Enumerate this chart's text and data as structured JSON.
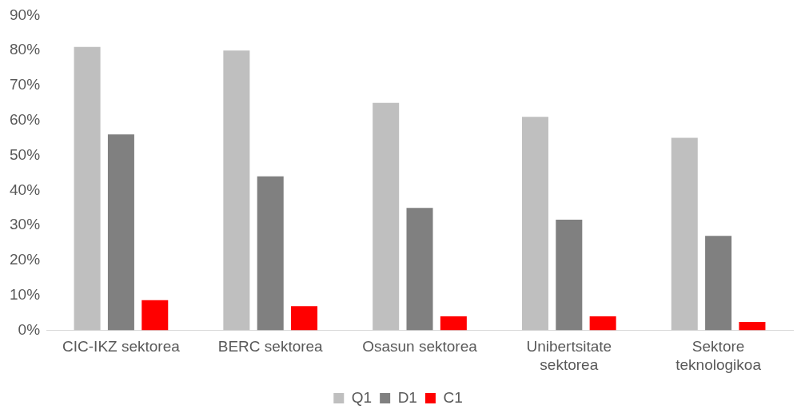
{
  "chart_data": {
    "type": "bar",
    "categories": [
      "CIC-IKZ sektorea",
      "BERC sektorea",
      "Osasun sektorea",
      "Unibertsitate sektorea",
      "Sektore teknologikoa"
    ],
    "series": [
      {
        "name": "Q1",
        "color": "#bfbfbf",
        "values": [
          81,
          80,
          65,
          61,
          55
        ]
      },
      {
        "name": "D1",
        "color": "#808080",
        "values": [
          56,
          44,
          35,
          31.6,
          27
        ]
      },
      {
        "name": "C1",
        "color": "#ff0000",
        "values": [
          8.6,
          6.9,
          4,
          4,
          2.4
        ]
      }
    ],
    "ylim": [
      0,
      90
    ],
    "yticks": [
      {
        "value": 0,
        "label": "0%"
      },
      {
        "value": 10,
        "label": "10%"
      },
      {
        "value": 20,
        "label": "20%"
      },
      {
        "value": 30,
        "label": "30%"
      },
      {
        "value": 40,
        "label": "40%"
      },
      {
        "value": 50,
        "label": "50%"
      },
      {
        "value": 60,
        "label": "60%"
      },
      {
        "value": 70,
        "label": "70%"
      },
      {
        "value": 80,
        "label": "80%"
      },
      {
        "value": 90,
        "label": "90%"
      }
    ],
    "grid": false,
    "legend": "bottom"
  }
}
